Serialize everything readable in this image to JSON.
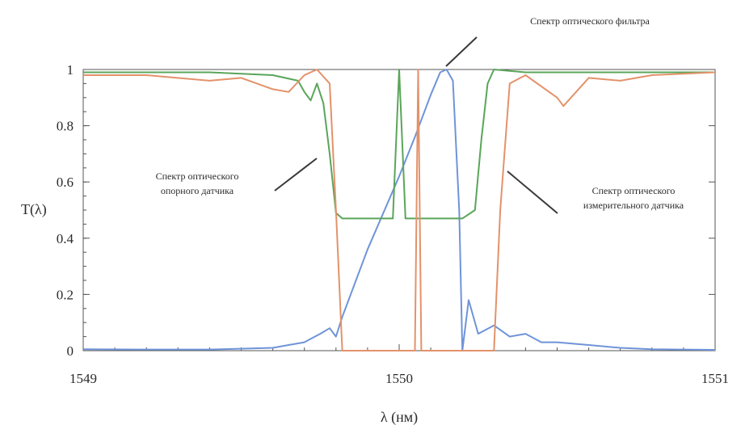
{
  "chart_data": {
    "type": "line",
    "xlabel": "λ (нм)",
    "ylabel": "T(λ)",
    "xlim": [
      1549,
      1551
    ],
    "ylim": [
      0,
      1
    ],
    "x_ticks": [
      "1549",
      "1550",
      "1551"
    ],
    "y_ticks": [
      "0",
      "0.2",
      "0.4",
      "0.6",
      "0.8",
      "1"
    ],
    "grid": false,
    "annotations": [
      {
        "lines": [
          "Спектр оптического фильтра"
        ],
        "series": "filter"
      },
      {
        "lines": [
          "Спектр оптического",
          "опорного датчика"
        ],
        "series": "reference"
      },
      {
        "lines": [
          "Спектр оптического",
          "измерительного датчика"
        ],
        "series": "measuring"
      }
    ],
    "series": [
      {
        "id": "filter",
        "color": "#6f94d8",
        "points": [
          [
            1549.0,
            0.005
          ],
          [
            1549.2,
            0.004
          ],
          [
            1549.4,
            0.004
          ],
          [
            1549.6,
            0.01
          ],
          [
            1549.65,
            0.02
          ],
          [
            1549.7,
            0.03
          ],
          [
            1549.75,
            0.06
          ],
          [
            1549.78,
            0.08
          ],
          [
            1549.8,
            0.05
          ],
          [
            1549.82,
            0.12
          ],
          [
            1549.9,
            0.36
          ],
          [
            1550.0,
            0.62
          ],
          [
            1550.05,
            0.76
          ],
          [
            1550.1,
            0.91
          ],
          [
            1550.13,
            0.99
          ],
          [
            1550.15,
            1.0
          ],
          [
            1550.17,
            0.96
          ],
          [
            1550.19,
            0.5
          ],
          [
            1550.2,
            0.0
          ],
          [
            1550.22,
            0.18
          ],
          [
            1550.25,
            0.06
          ],
          [
            1550.3,
            0.09
          ],
          [
            1550.35,
            0.05
          ],
          [
            1550.4,
            0.06
          ],
          [
            1550.45,
            0.03
          ],
          [
            1550.5,
            0.03
          ],
          [
            1550.6,
            0.02
          ],
          [
            1550.7,
            0.01
          ],
          [
            1550.8,
            0.005
          ],
          [
            1551.0,
            0.003
          ]
        ]
      },
      {
        "id": "reference",
        "color": "#5aa55a",
        "points": [
          [
            1549.0,
            0.99
          ],
          [
            1549.2,
            0.99
          ],
          [
            1549.4,
            0.99
          ],
          [
            1549.6,
            0.98
          ],
          [
            1549.68,
            0.96
          ],
          [
            1549.7,
            0.92
          ],
          [
            1549.72,
            0.89
          ],
          [
            1549.74,
            0.95
          ],
          [
            1549.76,
            0.88
          ],
          [
            1549.78,
            0.7
          ],
          [
            1549.8,
            0.49
          ],
          [
            1549.82,
            0.47
          ],
          [
            1549.9,
            0.47
          ],
          [
            1549.98,
            0.47
          ],
          [
            1550.0,
            1.0
          ],
          [
            1550.02,
            0.47
          ],
          [
            1550.1,
            0.47
          ],
          [
            1550.2,
            0.47
          ],
          [
            1550.24,
            0.5
          ],
          [
            1550.26,
            0.75
          ],
          [
            1550.28,
            0.95
          ],
          [
            1550.3,
            1.0
          ],
          [
            1550.4,
            0.99
          ],
          [
            1550.6,
            0.99
          ],
          [
            1550.8,
            0.99
          ],
          [
            1551.0,
            0.99
          ]
        ]
      },
      {
        "id": "measuring",
        "color": "#e3926a",
        "points": [
          [
            1549.0,
            0.98
          ],
          [
            1549.2,
            0.98
          ],
          [
            1549.4,
            0.96
          ],
          [
            1549.5,
            0.97
          ],
          [
            1549.6,
            0.93
          ],
          [
            1549.65,
            0.92
          ],
          [
            1549.7,
            0.98
          ],
          [
            1549.74,
            1.0
          ],
          [
            1549.78,
            0.95
          ],
          [
            1549.8,
            0.5
          ],
          [
            1549.82,
            0.0
          ],
          [
            1549.9,
            0.0
          ],
          [
            1550.05,
            0.0
          ],
          [
            1550.06,
            1.0
          ],
          [
            1550.07,
            0.0
          ],
          [
            1550.3,
            0.0
          ],
          [
            1550.32,
            0.5
          ],
          [
            1550.35,
            0.95
          ],
          [
            1550.4,
            0.98
          ],
          [
            1550.5,
            0.9
          ],
          [
            1550.52,
            0.87
          ],
          [
            1550.6,
            0.97
          ],
          [
            1550.7,
            0.96
          ],
          [
            1550.8,
            0.98
          ],
          [
            1551.0,
            0.99
          ]
        ]
      }
    ]
  }
}
